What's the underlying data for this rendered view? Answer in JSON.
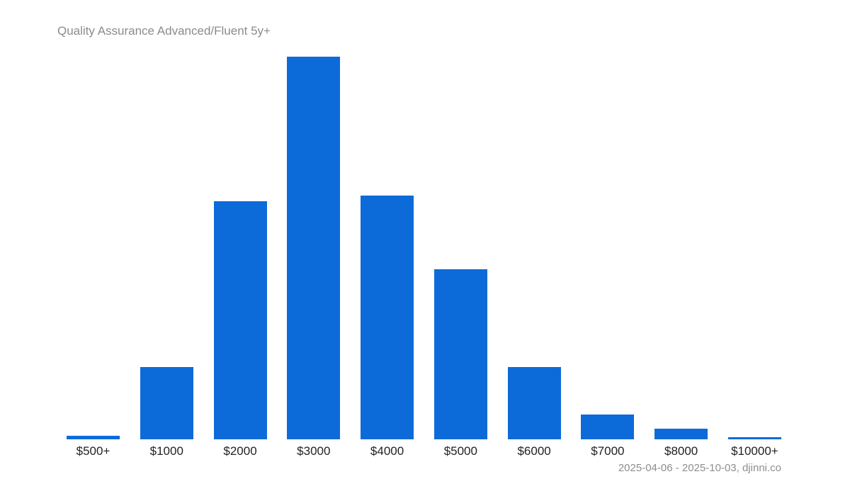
{
  "title": "Quality Assurance Advanced/Fluent 5y+",
  "footer": {
    "text": "2025-04-06 - 2025-10-03, djinni.co",
    "date_range": "2025-04-06 - 2025-10-03",
    "source": "djinni.co"
  },
  "colors": {
    "bar": "#0d6bd9",
    "title": "#8b8b8b",
    "footer": "#8e8e8e",
    "label": "#222222",
    "background": "#ffffff"
  },
  "chart_data": {
    "type": "bar",
    "title": "Quality Assurance Advanced/Fluent 5y+",
    "categories": [
      "$500+",
      "$1000",
      "$2000",
      "$3000",
      "$4000",
      "$5000",
      "$6000",
      "$7000",
      "$8000",
      "$10000+"
    ],
    "values": [
      0.93,
      18.9,
      62.2,
      100,
      63.7,
      44.4,
      18.9,
      6.5,
      2.8,
      0.56
    ],
    "values_unit": "percent of tallest bar ($3000 = 100)",
    "xlabel": "",
    "ylabel": "",
    "y_axis_visible": false,
    "grid": false,
    "legend": false,
    "annotation": "2025-04-06 - 2025-10-03, djinni.co"
  }
}
